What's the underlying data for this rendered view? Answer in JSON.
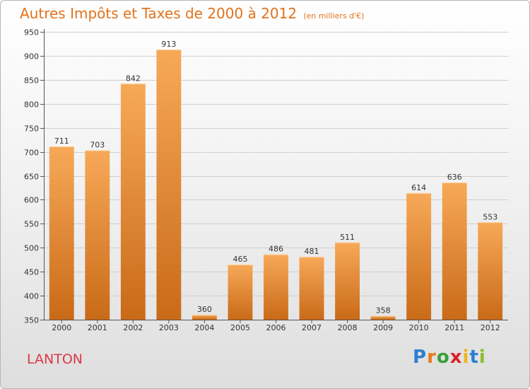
{
  "header": {
    "title": "Autres Impôts et Taxes de 2000 à 2012",
    "unit": "(en milliers d'€)"
  },
  "footer": {
    "place": "LANTON",
    "brand_letters": [
      {
        "ch": "P",
        "color": "#2b7fd2"
      },
      {
        "ch": "r",
        "color": "#e47a1d"
      },
      {
        "ch": "o",
        "color": "#3a9f3a"
      },
      {
        "ch": "x",
        "color": "#d8232a"
      },
      {
        "ch": "i",
        "color": "#f2b21c"
      },
      {
        "ch": "t",
        "color": "#2b7fd2"
      },
      {
        "ch": "i",
        "color": "#8bbd2a"
      }
    ]
  },
  "colors": {
    "bar_top": "#f7a958",
    "bar_bottom": "#c96a18",
    "grid": "#cfcfcf",
    "title": "#e2731b"
  },
  "chart_data": {
    "type": "bar",
    "title": "Autres Impôts et Taxes de 2000 à 2012",
    "subtitle": "(en milliers d'€)",
    "xlabel": "",
    "ylabel": "",
    "categories": [
      "2000",
      "2001",
      "2002",
      "2003",
      "2004",
      "2005",
      "2006",
      "2007",
      "2008",
      "2009",
      "2010",
      "2011",
      "2012"
    ],
    "values": [
      711,
      703,
      842,
      913,
      360,
      465,
      486,
      481,
      511,
      358,
      614,
      636,
      553
    ],
    "ylim": [
      350,
      950
    ],
    "yticks": [
      350,
      400,
      450,
      500,
      550,
      600,
      650,
      700,
      750,
      800,
      850,
      900,
      950
    ],
    "grid": true,
    "legend": "none"
  }
}
